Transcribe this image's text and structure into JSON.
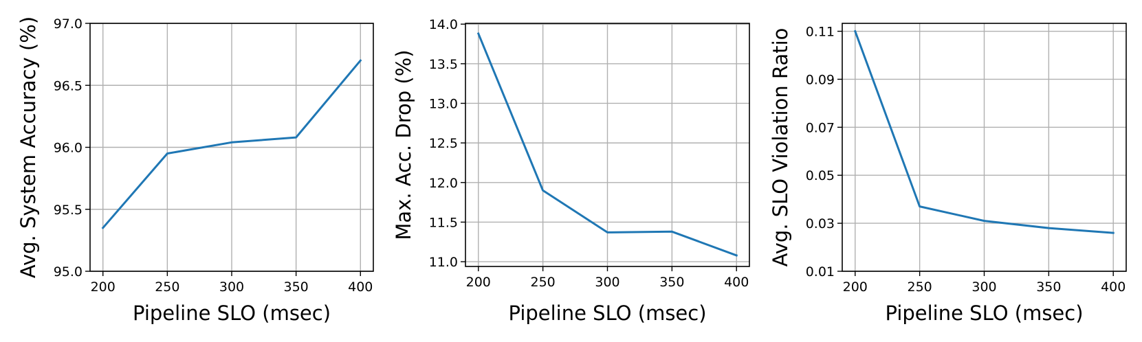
{
  "colors": {
    "line": "#1f77b4",
    "grid": "#b0b0b0",
    "axes": "#000000"
  },
  "chart_data": [
    {
      "type": "line",
      "title": "",
      "xlabel": "Pipeline SLO (msec)",
      "ylabel": "Avg. System Accuracy (%)",
      "x": [
        200,
        250,
        300,
        350,
        400
      ],
      "x_ticks": [
        "200",
        "250",
        "300",
        "350",
        "400"
      ],
      "y_ticks": [
        "95.0",
        "95.5",
        "96.0",
        "96.5",
        "97.0"
      ],
      "y_tick_values": [
        95.0,
        95.5,
        96.0,
        96.5,
        97.0
      ],
      "xlim": [
        190,
        410
      ],
      "ylim": [
        95.0,
        97.0
      ],
      "grid": true,
      "series": [
        {
          "values": [
            95.35,
            95.95,
            96.04,
            96.08,
            96.7
          ]
        }
      ]
    },
    {
      "type": "line",
      "title": "",
      "xlabel": "Pipeline SLO (msec)",
      "ylabel": "Max. Acc. Drop (%)",
      "x": [
        200,
        250,
        300,
        350,
        400
      ],
      "x_ticks": [
        "200",
        "250",
        "300",
        "350",
        "400"
      ],
      "y_ticks": [
        "11.0",
        "11.5",
        "12.0",
        "12.5",
        "13.0",
        "13.5",
        "14.0"
      ],
      "y_tick_values": [
        11.0,
        11.5,
        12.0,
        12.5,
        13.0,
        13.5,
        14.0
      ],
      "xlim": [
        190,
        410
      ],
      "ylim": [
        10.94,
        14.01
      ],
      "grid": true,
      "series": [
        {
          "values": [
            13.88,
            11.9,
            11.37,
            11.38,
            11.08
          ]
        }
      ]
    },
    {
      "type": "line",
      "title": "",
      "xlabel": "Pipeline SLO (msec)",
      "ylabel": "Avg. SLO Violation Ratio",
      "x": [
        200,
        250,
        300,
        350,
        400
      ],
      "x_ticks": [
        "200",
        "250",
        "300",
        "350",
        "400"
      ],
      "y_ticks": [
        "0.01",
        "0.03",
        "0.05",
        "0.07",
        "0.09",
        "0.11"
      ],
      "y_tick_values": [
        0.01,
        0.03,
        0.05,
        0.07,
        0.09,
        0.11
      ],
      "xlim": [
        190,
        410
      ],
      "ylim": [
        0.01,
        0.1133
      ],
      "grid": true,
      "series": [
        {
          "values": [
            0.11,
            0.037,
            0.031,
            0.028,
            0.026
          ]
        }
      ]
    }
  ]
}
